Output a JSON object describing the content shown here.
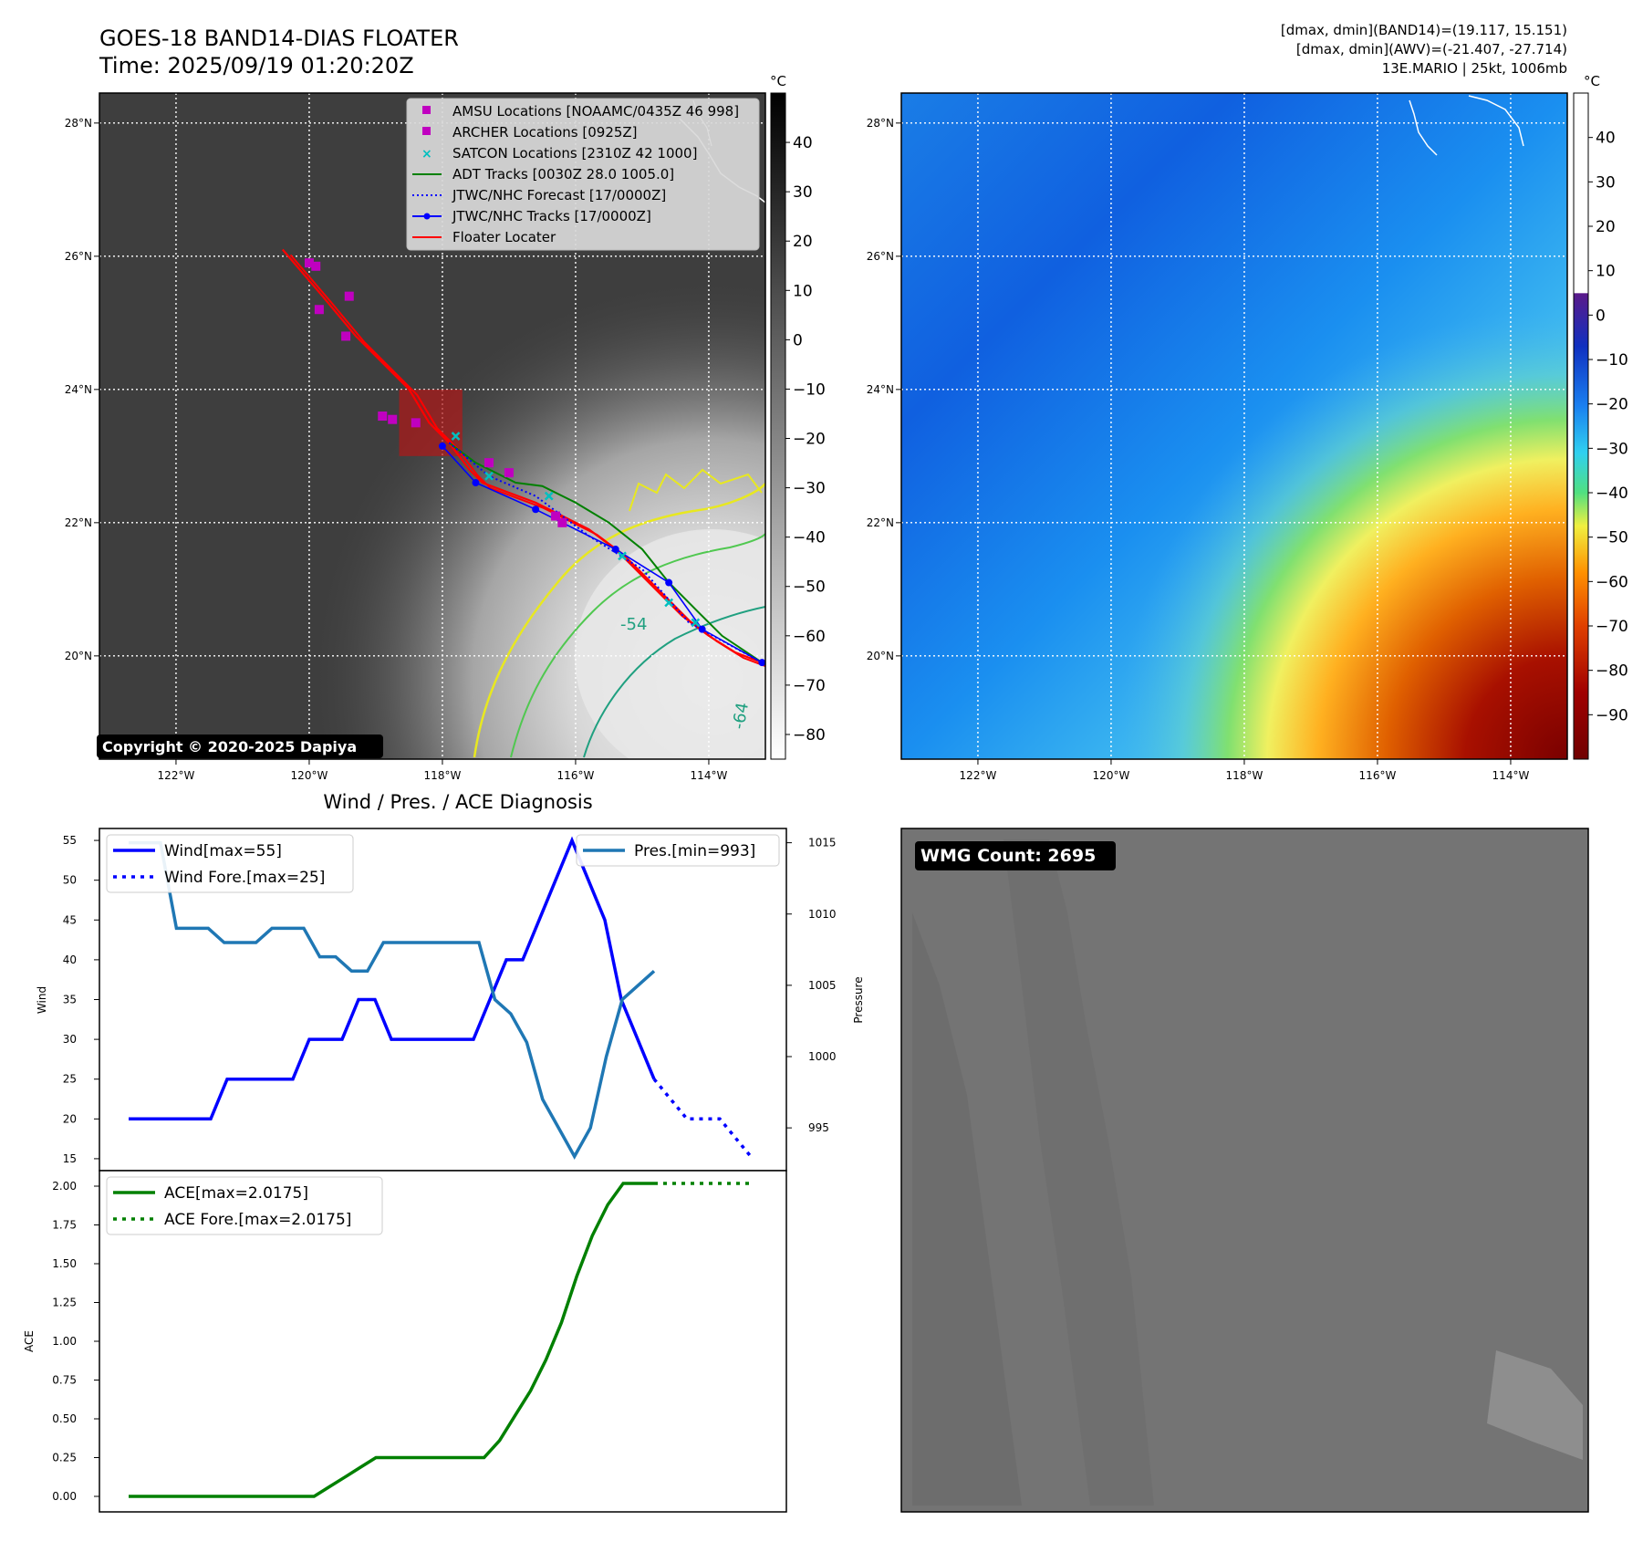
{
  "header": {
    "title_line1": "GOES-18 BAND14-DIAS FLOATER",
    "title_line2": "Time: 2025/09/19 01:20:20Z",
    "stats_line1": "[dmax, dmin](BAND14)=(19.117, 15.151)",
    "stats_line2": "[dmax, dmin](AWV)=(-21.407, -27.714)",
    "stats_line3": "13E.MARIO | 25kt, 1006mb"
  },
  "copyright": "Copyright © 2020-2025 Dapiya",
  "wmg_label": "WMG Count: 2695",
  "colors": {
    "amsu": "#c000c0",
    "archer": "#c000c0",
    "satcon": "#00bfbf",
    "adt": "#008000",
    "jtwc_forecast": "#0000ff",
    "jtwc_tracks": "#0000ff",
    "floater": "#ff0000",
    "wind": "#0000ff",
    "pressure": "#1f77b4",
    "ace": "#008000"
  },
  "map_axes": {
    "lon_ticks": [
      -122,
      -120,
      -118,
      -116,
      -114
    ],
    "lon_labels": [
      "122°W",
      "120°W",
      "118°W",
      "116°W",
      "114°W"
    ],
    "lat_ticks": [
      20,
      22,
      24,
      26,
      28
    ],
    "lat_labels": [
      "20°N",
      "22°N",
      "24°N",
      "26°N",
      "28°N"
    ],
    "lon_range": [
      -123.15,
      -113.15
    ],
    "lat_range": [
      18.45,
      28.45
    ]
  },
  "chart_data": [
    {
      "type": "scatter",
      "panel": "ir_map",
      "legend": {
        "position": "upper-right",
        "entries": [
          "AMSU Locations [NOAAMC/0435Z 46 998]",
          "ARCHER Locations [0925Z]",
          "SATCON Locations [2310Z 42 1000]",
          "ADT Tracks [0030Z 28.0 1005.0]",
          "JTWC/NHC Forecast [17/0000Z]",
          "JTWC/NHC Tracks [17/0000Z]",
          "Floater Locater"
        ]
      },
      "colorbar": {
        "unit": "°C",
        "ticks": [
          40,
          30,
          20,
          10,
          0,
          -10,
          -20,
          -30,
          -40,
          -50,
          -60,
          -70,
          -80
        ],
        "range": [
          -85,
          50
        ]
      },
      "contour_labels": [
        "-54",
        "-64"
      ],
      "amsu_points": [
        [
          -120.0,
          25.9
        ],
        [
          -119.9,
          25.85
        ],
        [
          -119.4,
          25.4
        ],
        [
          -119.85,
          25.2
        ],
        [
          -119.45,
          24.8
        ],
        [
          -118.9,
          23.6
        ],
        [
          -118.75,
          23.55
        ],
        [
          -118.4,
          23.5
        ]
      ],
      "archer_points": [
        [
          -117.3,
          22.9
        ],
        [
          -117.0,
          22.75
        ],
        [
          -116.3,
          22.1
        ],
        [
          -116.2,
          22.0
        ]
      ],
      "satcon_points": [
        [
          -117.8,
          23.3
        ],
        [
          -117.3,
          22.7
        ],
        [
          -116.4,
          22.4
        ],
        [
          -115.3,
          21.5
        ],
        [
          -114.6,
          20.8
        ],
        [
          -114.2,
          20.5
        ]
      ],
      "adt_track": [
        [
          -117.9,
          23.2
        ],
        [
          -117.5,
          22.9
        ],
        [
          -116.9,
          22.6
        ],
        [
          -116.5,
          22.55
        ],
        [
          -116.0,
          22.3
        ],
        [
          -115.5,
          22.0
        ],
        [
          -115.0,
          21.6
        ],
        [
          -114.6,
          21.1
        ],
        [
          -114.2,
          20.7
        ],
        [
          -113.8,
          20.3
        ],
        [
          -113.2,
          19.9
        ]
      ],
      "jtwc_forecast": [
        [
          -117.9,
          23.2
        ],
        [
          -117.3,
          22.7
        ],
        [
          -116.6,
          22.4
        ],
        [
          -115.8,
          21.8
        ],
        [
          -115.0,
          21.3
        ],
        [
          -114.3,
          20.5
        ],
        [
          -113.2,
          19.9
        ]
      ],
      "jtwc_tracks": [
        [
          -118.0,
          23.15
        ],
        [
          -117.5,
          22.6
        ],
        [
          -116.6,
          22.2
        ],
        [
          -115.4,
          21.6
        ],
        [
          -114.6,
          21.1
        ],
        [
          -114.1,
          20.4
        ],
        [
          -113.2,
          19.9
        ]
      ],
      "floater_locater": [
        [
          -120.4,
          26.1
        ],
        [
          -119.8,
          25.4
        ],
        [
          -119.3,
          24.8
        ],
        [
          -118.5,
          24.0
        ],
        [
          -118.2,
          23.5
        ],
        [
          -117.9,
          23.2
        ],
        [
          -117.6,
          22.8
        ],
        [
          -117.4,
          22.6
        ],
        [
          -117.0,
          22.45
        ],
        [
          -116.6,
          22.3
        ],
        [
          -116.2,
          22.1
        ],
        [
          -115.8,
          21.9
        ],
        [
          -115.4,
          21.6
        ],
        [
          -115.1,
          21.3
        ],
        [
          -114.8,
          21.0
        ],
        [
          -114.4,
          20.6
        ],
        [
          -114.0,
          20.3
        ],
        [
          -113.6,
          20.05
        ],
        [
          -113.2,
          19.9
        ]
      ],
      "floater_box": {
        "lon": [
          -118.65,
          -117.7
        ],
        "lat": [
          23.0,
          24.0
        ]
      }
    },
    {
      "type": "heatmap",
      "panel": "water_vapor_map",
      "colorbar": {
        "unit": "°C",
        "ticks": [
          40,
          30,
          20,
          10,
          0,
          -10,
          -20,
          -30,
          -40,
          -50,
          -60,
          -70,
          -80,
          -90
        ],
        "range": [
          -100,
          50
        ]
      }
    },
    {
      "type": "line",
      "title": "Wind / Pres. / ACE Diagnosis",
      "ylabel": "Wind",
      "y2label": "Pressure",
      "ylim": [
        13.5,
        56.5
      ],
      "y2lim": [
        992,
        1016
      ],
      "yticks": [
        15,
        20,
        25,
        30,
        35,
        40,
        45,
        50,
        55
      ],
      "y2ticks": [
        995,
        1000,
        1005,
        1010,
        1015
      ],
      "series": [
        {
          "name": "Wind[max=55]",
          "axis": "left",
          "style": "solid",
          "values": [
            20,
            20,
            20,
            20,
            20,
            20,
            25,
            25,
            25,
            25,
            25,
            30,
            30,
            30,
            35,
            35,
            30,
            30,
            30,
            30,
            30,
            30,
            35,
            40,
            40,
            45,
            50,
            55,
            50,
            45,
            35,
            30,
            25
          ]
        },
        {
          "name": "Wind Fore.[max=25]",
          "axis": "left",
          "style": "dotted",
          "values": [
            25,
            22.5,
            20,
            20,
            20,
            17.5,
            15
          ]
        },
        {
          "name": "Pres.[min=993]",
          "axis": "right",
          "style": "solid",
          "values": [
            1015,
            1015,
            1015,
            1009,
            1009,
            1009,
            1008,
            1008,
            1008,
            1009,
            1009,
            1009,
            1007,
            1007,
            1006,
            1006,
            1008,
            1008,
            1008,
            1008,
            1008,
            1008,
            1008,
            1004,
            1003,
            1001,
            997,
            995,
            993,
            995,
            1000,
            1004,
            1005,
            1006
          ]
        }
      ]
    },
    {
      "type": "line",
      "ylabel": "ACE",
      "ylim": [
        -0.1,
        2.1
      ],
      "yticks": [
        0.0,
        0.25,
        0.5,
        0.75,
        1.0,
        1.25,
        1.5,
        1.75,
        2.0
      ],
      "ytick_labels": [
        "0.00",
        "0.25",
        "0.50",
        "0.75",
        "1.00",
        "1.25",
        "1.50",
        "1.75",
        "2.00"
      ],
      "series": [
        {
          "name": "ACE[max=2.0175]",
          "style": "solid",
          "values": [
            0,
            0,
            0,
            0,
            0,
            0,
            0,
            0,
            0,
            0,
            0,
            0,
            0,
            0.0625,
            0.125,
            0.1875,
            0.25,
            0.25,
            0.25,
            0.25,
            0.25,
            0.25,
            0.25,
            0.25,
            0.36,
            0.52,
            0.68,
            0.88,
            1.12,
            1.42,
            1.68,
            1.88,
            2.0175,
            2.0175,
            2.0175
          ]
        },
        {
          "name": "ACE Fore.[max=2.0175]",
          "style": "dotted",
          "values": [
            2.0175,
            2.0175,
            2.0175,
            2.0175,
            2.0175,
            2.0175,
            2.0175
          ]
        }
      ]
    }
  ]
}
